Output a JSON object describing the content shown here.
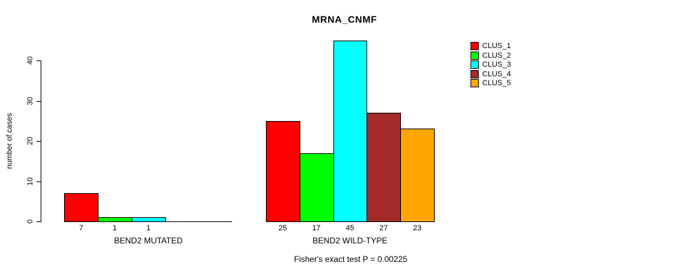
{
  "title": "MRNA_CNMF",
  "footer": "Fisher's exact test P = 0.00225",
  "chart_data": {
    "type": "bar",
    "title": "MRNA_CNMF",
    "xlabel": "",
    "ylabel": "number of cases",
    "ylim": [
      0,
      45
    ],
    "yticks": [
      0,
      10,
      20,
      30,
      40
    ],
    "grid": false,
    "legend_position": "topright",
    "series": [
      {
        "name": "CLUS_1",
        "color": "#FF0000"
      },
      {
        "name": "CLUS_2",
        "color": "#00FF00"
      },
      {
        "name": "CLUS_3",
        "color": "#00FFFF"
      },
      {
        "name": "CLUS_4",
        "color": "#A52A2A"
      },
      {
        "name": "CLUS_5",
        "color": "#FFA500"
      }
    ],
    "groups": [
      {
        "label": "BEND2 MUTATED",
        "values": [
          7,
          1,
          1,
          0,
          0
        ]
      },
      {
        "label": "BEND2 WILD-TYPE",
        "values": [
          25,
          17,
          45,
          27,
          23
        ]
      }
    ],
    "annotation": "Fisher's exact test P = 0.00225"
  }
}
